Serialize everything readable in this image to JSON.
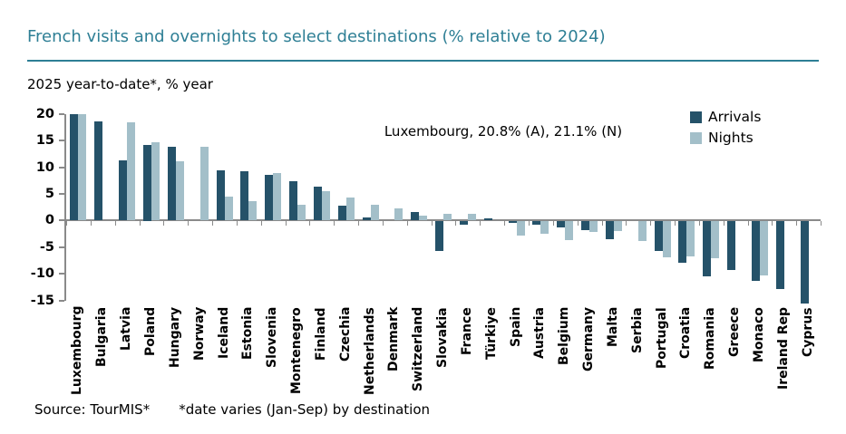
{
  "title": "French visits and overnights to select destinations (% relative to 2024)",
  "subtitle": "2025 year-to-date*, % year",
  "annotation": "Luxembourg, 20.8% (A), 21.1% (N)",
  "legend": {
    "arrivals_label": "Arrivals",
    "nights_label": "Nights"
  },
  "source": {
    "source_label": "Source: TourMIS*",
    "footnote": "*date varies (Jan-Sep) by destination"
  },
  "colors": {
    "arrivals": "#255269",
    "nights": "#a3bfc9",
    "title_accent": "#2e7f95",
    "axis": "#8a8a8a"
  },
  "chart_data": {
    "type": "bar",
    "title": "French visits and overnights to select destinations (% relative to 2024)",
    "xlabel": "",
    "ylabel": "2025 year-to-date*, % year",
    "ylim": [
      -15,
      20
    ],
    "yticks": [
      20,
      15,
      10,
      5,
      0,
      -5,
      -10,
      -15
    ],
    "grid": false,
    "legend_position": "top-right",
    "bar_clip_note": "Luxembourg bars clipped at +20 (actual values in annotation); Cyprus bar extends slightly past -15",
    "categories": [
      "Luxembourg",
      "Bulgaria",
      "Latvia",
      "Poland",
      "Hungary",
      "Norway",
      "Iceland",
      "Estonia",
      "Slovenia",
      "Montenegro",
      "Finland",
      "Czechia",
      "Netherlands",
      "Denmark",
      "Switzerland",
      "Slovakia",
      "France",
      "Türkiye",
      "Spain",
      "Austria",
      "Belgium",
      "Germany",
      "Malta",
      "Serbia",
      "Portugal",
      "Croatia",
      "Romania",
      "Greece",
      "Monaco",
      "Ireland Rep",
      "Cyprus"
    ],
    "series": [
      {
        "name": "Arrivals",
        "values": [
          20.8,
          18.6,
          11.4,
          14.3,
          13.8,
          null,
          9.4,
          9.2,
          8.6,
          7.4,
          6.4,
          2.8,
          0.6,
          null,
          1.6,
          -5.5,
          -0.7,
          0.4,
          -0.3,
          -0.7,
          -1.1,
          -1.6,
          -3.4,
          null,
          -5.6,
          -7.7,
          -10.3,
          -9.1,
          -11.2,
          -12.7,
          -15.5
        ]
      },
      {
        "name": "Nights",
        "values": [
          21.1,
          null,
          18.4,
          14.8,
          11.2,
          13.8,
          4.5,
          3.6,
          8.9,
          3.0,
          5.6,
          4.4,
          3.0,
          2.3,
          1.0,
          1.3,
          1.3,
          null,
          -2.6,
          -2.4,
          -3.6,
          -2.0,
          -1.8,
          -3.7,
          -6.7,
          -6.6,
          -7.0,
          null,
          -10.2,
          null,
          null
        ]
      }
    ]
  }
}
